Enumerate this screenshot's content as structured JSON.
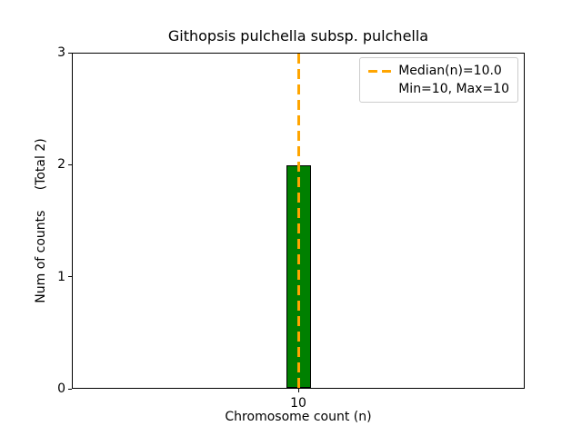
{
  "chart_data": {
    "type": "bar",
    "title": "Githopsis pulchella subsp. pulchella",
    "xlabel": "Chromosome count (n)",
    "ylabel": "Num of counts     (Total 2)",
    "categories": [
      "10"
    ],
    "values": [
      2
    ],
    "total": 2,
    "ylim": [
      0,
      3
    ],
    "yticks": [
      "0",
      "1",
      "2",
      "3"
    ],
    "xticks": [
      "10"
    ],
    "median": 10.0,
    "min": 10,
    "max": 10,
    "grid": false,
    "legend": {
      "position": "upper right",
      "entries": [
        "Median(n)=10.0",
        "Min=10, Max=10"
      ]
    },
    "colors": {
      "bar_fill": "#008000",
      "bar_edge": "#000000",
      "median_line": "#FFA500",
      "legend_border": "#cccccc",
      "axis": "#000000",
      "background": "#ffffff"
    }
  }
}
